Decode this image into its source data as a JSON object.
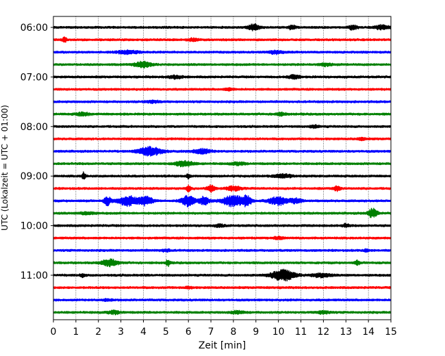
{
  "chart_data": {
    "type": "line",
    "title": "",
    "xlabel": "Zeit  [min]",
    "ylabel": "UTC (Lokalzeit = UTC + 01:00)",
    "xlim": [
      0,
      15
    ],
    "x_ticks": [
      0,
      1,
      2,
      3,
      4,
      5,
      6,
      7,
      8,
      9,
      10,
      11,
      12,
      13,
      14,
      15
    ],
    "x_tick_labels": [
      "0",
      "1",
      "2",
      "3",
      "4",
      "5",
      "6",
      "7",
      "8",
      "9",
      "10",
      "11",
      "12",
      "13",
      "14",
      "15"
    ],
    "y_tick_labels": [
      "06:00",
      "07:00",
      "08:00",
      "09:00",
      "10:00",
      "11:00"
    ],
    "y_tick_trace_index": [
      0,
      4,
      8,
      12,
      16,
      20
    ],
    "grid": {
      "x": true,
      "style": "dotted"
    },
    "trace_colors": [
      "#000000",
      "#ff0000",
      "#0000ff",
      "#008000"
    ],
    "trace_interval_minutes": 15,
    "traces": [
      {
        "start": "06:00",
        "color": "#000000",
        "events": [
          {
            "t": 8.9,
            "amp": 0.7,
            "dur": 0.25
          },
          {
            "t": 10.6,
            "amp": 0.5,
            "dur": 0.15
          },
          {
            "t": 13.3,
            "amp": 0.45,
            "dur": 0.2
          },
          {
            "t": 14.6,
            "amp": 0.5,
            "dur": 0.3
          }
        ]
      },
      {
        "start": "06:15",
        "color": "#ff0000",
        "events": [
          {
            "t": 0.5,
            "amp": 0.5,
            "dur": 0.1
          },
          {
            "t": 6.2,
            "amp": 0.3,
            "dur": 0.2
          }
        ]
      },
      {
        "start": "06:30",
        "color": "#0000ff",
        "events": [
          {
            "t": 3.3,
            "amp": 0.35,
            "dur": 0.5
          },
          {
            "t": 9.9,
            "amp": 0.35,
            "dur": 0.3
          }
        ]
      },
      {
        "start": "06:45",
        "color": "#008000",
        "events": [
          {
            "t": 4.0,
            "amp": 0.7,
            "dur": 0.35
          },
          {
            "t": 12.1,
            "amp": 0.3,
            "dur": 0.3
          }
        ]
      },
      {
        "start": "07:00",
        "color": "#000000",
        "events": [
          {
            "t": 5.4,
            "amp": 0.35,
            "dur": 0.3
          },
          {
            "t": 10.7,
            "amp": 0.45,
            "dur": 0.25
          }
        ]
      },
      {
        "start": "07:15",
        "color": "#ff0000",
        "events": [
          {
            "t": 7.8,
            "amp": 0.25,
            "dur": 0.2
          }
        ]
      },
      {
        "start": "07:30",
        "color": "#0000ff",
        "events": [
          {
            "t": 4.4,
            "amp": 0.25,
            "dur": 0.3
          }
        ]
      },
      {
        "start": "07:45",
        "color": "#008000",
        "events": [
          {
            "t": 1.3,
            "amp": 0.35,
            "dur": 0.3
          },
          {
            "t": 10.1,
            "amp": 0.3,
            "dur": 0.25
          }
        ]
      },
      {
        "start": "08:00",
        "color": "#000000",
        "events": [
          {
            "t": 11.6,
            "amp": 0.3,
            "dur": 0.2
          }
        ]
      },
      {
        "start": "08:15",
        "color": "#ff0000",
        "events": [
          {
            "t": 13.7,
            "amp": 0.3,
            "dur": 0.15
          }
        ]
      },
      {
        "start": "08:30",
        "color": "#0000ff",
        "events": [
          {
            "t": 4.3,
            "amp": 1.0,
            "dur": 0.5
          },
          {
            "t": 6.6,
            "amp": 0.55,
            "dur": 0.4
          }
        ]
      },
      {
        "start": "08:45",
        "color": "#008000",
        "events": [
          {
            "t": 5.8,
            "amp": 0.65,
            "dur": 0.4
          },
          {
            "t": 8.2,
            "amp": 0.3,
            "dur": 0.3
          }
        ]
      },
      {
        "start": "09:00",
        "color": "#000000",
        "events": [
          {
            "t": 1.35,
            "amp": 0.9,
            "dur": 0.08
          },
          {
            "t": 6.0,
            "amp": 0.5,
            "dur": 0.1
          },
          {
            "t": 10.2,
            "amp": 0.4,
            "dur": 0.4
          }
        ]
      },
      {
        "start": "09:15",
        "color": "#ff0000",
        "events": [
          {
            "t": 6.0,
            "amp": 0.7,
            "dur": 0.1
          },
          {
            "t": 7.0,
            "amp": 0.9,
            "dur": 0.15
          },
          {
            "t": 8.0,
            "amp": 0.5,
            "dur": 0.3
          },
          {
            "t": 12.6,
            "amp": 0.5,
            "dur": 0.15
          }
        ]
      },
      {
        "start": "09:30",
        "color": "#0000ff",
        "events": [
          {
            "t": 2.4,
            "amp": 1.0,
            "dur": 0.15
          },
          {
            "t": 3.3,
            "amp": 1.1,
            "dur": 0.45
          },
          {
            "t": 4.1,
            "amp": 1.0,
            "dur": 0.3
          },
          {
            "t": 6.0,
            "amp": 1.2,
            "dur": 0.3
          },
          {
            "t": 6.7,
            "amp": 1.0,
            "dur": 0.2
          },
          {
            "t": 8.0,
            "amp": 1.3,
            "dur": 0.5
          },
          {
            "t": 8.6,
            "amp": 1.0,
            "dur": 0.2
          },
          {
            "t": 10.0,
            "amp": 1.0,
            "dur": 0.4
          },
          {
            "t": 10.8,
            "amp": 0.6,
            "dur": 0.25
          }
        ]
      },
      {
        "start": "09:45",
        "color": "#008000",
        "events": [
          {
            "t": 14.2,
            "amp": 1.1,
            "dur": 0.2
          },
          {
            "t": 1.5,
            "amp": 0.3,
            "dur": 0.3
          }
        ]
      },
      {
        "start": "10:00",
        "color": "#000000",
        "events": [
          {
            "t": 7.4,
            "amp": 0.3,
            "dur": 0.2
          },
          {
            "t": 13.0,
            "amp": 0.35,
            "dur": 0.15
          }
        ]
      },
      {
        "start": "10:15",
        "color": "#ff0000",
        "events": [
          {
            "t": 10.0,
            "amp": 0.3,
            "dur": 0.2
          }
        ]
      },
      {
        "start": "10:30",
        "color": "#0000ff",
        "events": [
          {
            "t": 5.0,
            "amp": 0.25,
            "dur": 0.2
          },
          {
            "t": 13.9,
            "amp": 0.35,
            "dur": 0.1
          }
        ]
      },
      {
        "start": "10:45",
        "color": "#008000",
        "events": [
          {
            "t": 2.5,
            "amp": 0.8,
            "dur": 0.35
          },
          {
            "t": 5.1,
            "amp": 0.8,
            "dur": 0.08
          },
          {
            "t": 13.5,
            "amp": 0.5,
            "dur": 0.1
          }
        ]
      },
      {
        "start": "11:00",
        "color": "#000000",
        "events": [
          {
            "t": 1.3,
            "amp": 0.4,
            "dur": 0.1
          },
          {
            "t": 10.2,
            "amp": 1.3,
            "dur": 0.5
          },
          {
            "t": 11.9,
            "amp": 0.45,
            "dur": 0.4
          }
        ]
      },
      {
        "start": "11:15",
        "color": "#ff0000",
        "events": [
          {
            "t": 6.0,
            "amp": 0.2,
            "dur": 0.2
          }
        ]
      },
      {
        "start": "11:30",
        "color": "#0000ff",
        "events": [
          {
            "t": 2.4,
            "amp": 0.2,
            "dur": 0.2
          }
        ]
      },
      {
        "start": "11:45",
        "color": "#008000",
        "events": [
          {
            "t": 2.7,
            "amp": 0.35,
            "dur": 0.3
          },
          {
            "t": 8.2,
            "amp": 0.3,
            "dur": 0.3
          },
          {
            "t": 12.0,
            "amp": 0.3,
            "dur": 0.3
          }
        ]
      }
    ]
  }
}
